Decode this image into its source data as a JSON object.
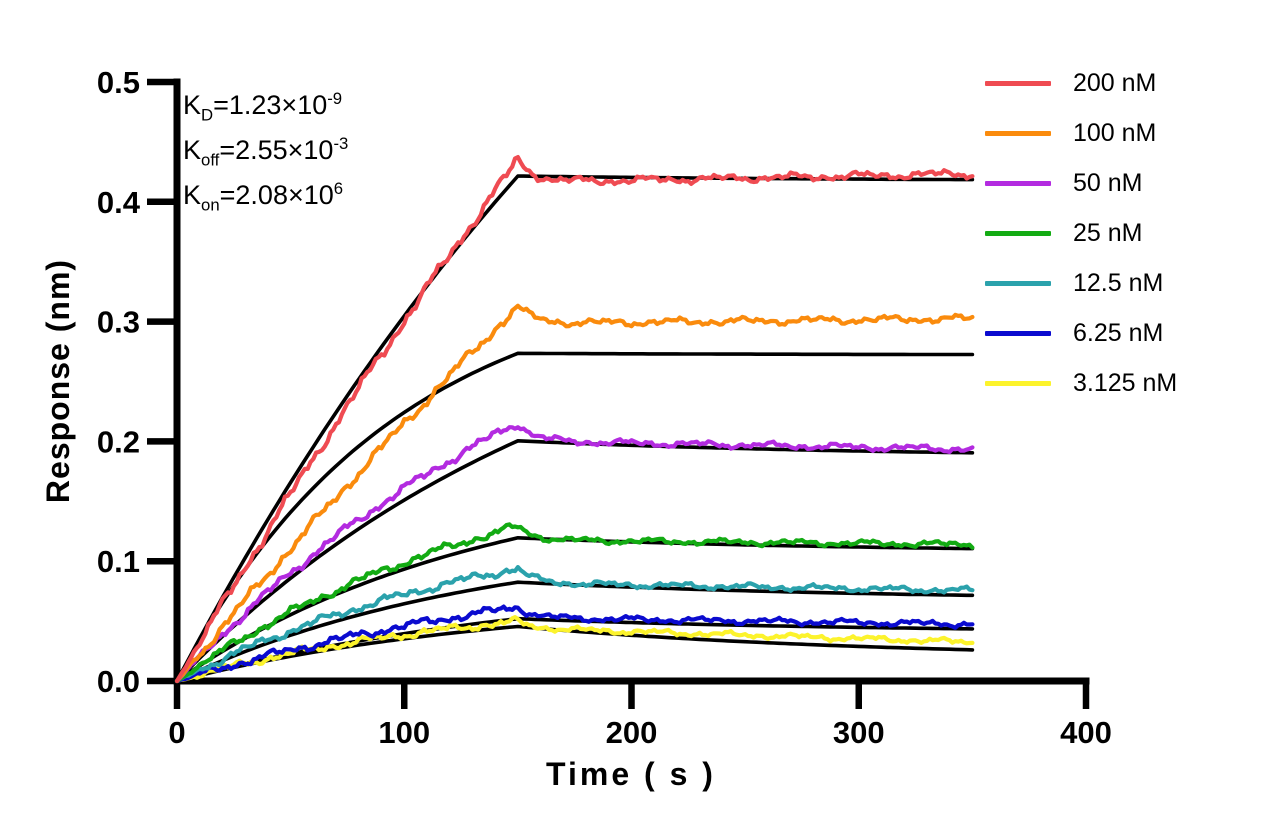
{
  "figure": {
    "background": "#FFFFFF"
  },
  "annotation": {
    "kd": {
      "base": "K",
      "sub": "D",
      "eq": "=1.23×10",
      "exp": "-9"
    },
    "koff": {
      "base": "K",
      "sub": "off",
      "eq": "=2.55×10",
      "exp": "-3"
    },
    "kon": {
      "base": "K",
      "sub": "on",
      "eq": "=2.08×10",
      "exp": "6"
    }
  },
  "chart_data": {
    "type": "line",
    "title": "",
    "xlabel": "Time ( s )",
    "ylabel": "Response (nm)",
    "xlim": [
      0,
      400
    ],
    "ylim": [
      0,
      0.5
    ],
    "x_ticks": [
      0,
      100,
      200,
      300,
      400
    ],
    "x_tick_labels": [
      "0",
      "100",
      "200",
      "300",
      "400"
    ],
    "y_ticks": [
      0,
      0.1,
      0.2,
      0.3,
      0.4,
      0.5
    ],
    "y_tick_labels": [
      "0.0",
      "0.1",
      "0.2",
      "0.3",
      "0.4",
      "0.5"
    ],
    "grid": false,
    "legend_position": "right",
    "axis_color": "#000000",
    "fit_color": "#000000",
    "kinetics": {
      "KD": 1.23e-09,
      "Koff": 0.00255,
      "Kon": 2080000.0
    },
    "phases": {
      "association_end_s": 150,
      "dissociation_end_s": 350
    },
    "series": [
      {
        "name": "200 nM",
        "concentration_nM": 200,
        "color": "#EF4B52",
        "data": {
          "peak": 0.435,
          "settle": 0.4165,
          "end": 0.4235,
          "k": 0.0015,
          "noise": 0.0035
        },
        "fit": {
          "plateau": 0.4215,
          "end": 0.4185,
          "k": 0.0035
        }
      },
      {
        "name": "100 nM",
        "concentration_nM": 100,
        "color": "#FA8B0D",
        "data": {
          "peak": 0.313,
          "settle": 0.2985,
          "end": 0.3025,
          "k": 0.0012,
          "noise": 0.0033
        },
        "fit": {
          "plateau": 0.2735,
          "end": 0.2725,
          "k": 0.0105
        }
      },
      {
        "name": "50 nM",
        "concentration_nM": 50,
        "color": "#B32BE0",
        "data": {
          "peak": 0.2155,
          "settle": 0.2,
          "end": 0.1935,
          "k": 0.005,
          "noise": 0.0029
        },
        "fit": {
          "plateau": 0.2005,
          "end": 0.1905,
          "k": 0.0055
        }
      },
      {
        "name": "25 nM",
        "concentration_nM": 25,
        "color": "#13AB13",
        "data": {
          "peak": 0.129,
          "settle": 0.1175,
          "end": 0.114,
          "k": 0.0065,
          "noise": 0.0027
        },
        "fit": {
          "plateau": 0.1195,
          "end": 0.1105,
          "k": 0.0075
        }
      },
      {
        "name": "12.5 nM",
        "concentration_nM": 12.5,
        "color": "#2BA2AC",
        "data": {
          "peak": 0.094,
          "settle": 0.0815,
          "end": 0.0755,
          "k": 0.0065,
          "noise": 0.0027
        },
        "fit": {
          "plateau": 0.0825,
          "end": 0.0715,
          "k": 0.0075
        }
      },
      {
        "name": "6.25 nM",
        "concentration_nM": 6.25,
        "color": "#0B0BCF",
        "data": {
          "peak": 0.0615,
          "settle": 0.0525,
          "end": 0.0475,
          "k": 0.005,
          "noise": 0.0027
        },
        "fit": {
          "plateau": 0.052,
          "end": 0.0435,
          "k": 0.006
        }
      },
      {
        "name": "3.125 nM",
        "concentration_nM": 3.125,
        "color": "#FCF32C",
        "data": {
          "peak": 0.0495,
          "settle": 0.0435,
          "end": 0.0325,
          "k": 0.0075,
          "noise": 0.0025
        },
        "fit": {
          "plateau": 0.0455,
          "end": 0.026,
          "k": 0.007
        }
      }
    ]
  }
}
